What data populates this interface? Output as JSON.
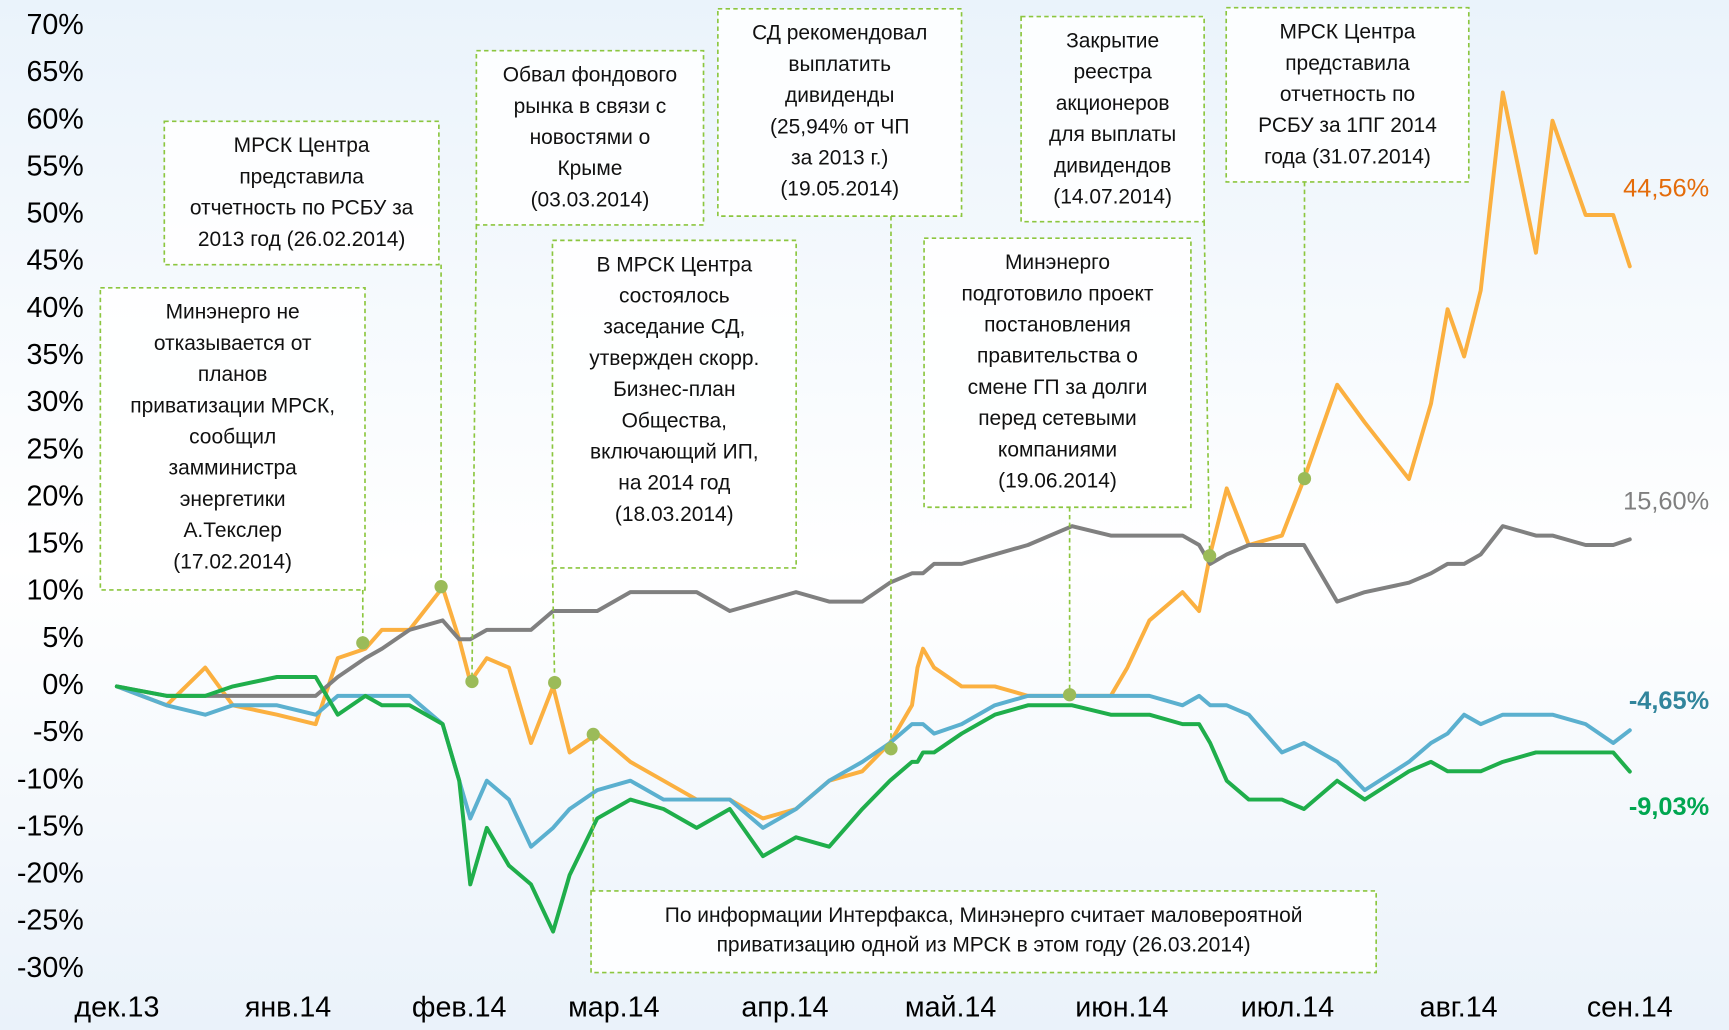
{
  "chart_data": {
    "type": "line",
    "x": [
      0,
      9,
      16,
      21,
      29,
      36,
      40,
      45,
      48,
      53,
      59,
      62,
      64,
      67,
      71,
      75,
      79,
      82,
      87,
      93,
      99,
      105,
      111,
      117,
      123,
      129,
      135,
      140,
      144,
      145,
      146,
      148,
      153,
      159,
      165,
      173,
      180,
      183,
      187,
      193,
      196,
      198,
      201,
      205,
      211,
      215,
      221,
      226,
      234,
      238,
      241,
      244,
      247,
      251,
      257,
      260,
      266,
      271,
      274
    ],
    "xlim": [
      0,
      274
    ],
    "xticks": [
      {
        "value": 0,
        "label": "дек.13"
      },
      {
        "value": 31,
        "label": "янв.14"
      },
      {
        "value": 62,
        "label": "фев.14"
      },
      {
        "value": 90,
        "label": "мар.14"
      },
      {
        "value": 121,
        "label": "апр.14"
      },
      {
        "value": 151,
        "label": "май.14"
      },
      {
        "value": 182,
        "label": "июн.14"
      },
      {
        "value": 212,
        "label": "июл.14"
      },
      {
        "value": 243,
        "label": "авг.14"
      },
      {
        "value": 274,
        "label": "сен.14"
      }
    ],
    "ylim": [
      -30,
      70
    ],
    "yticks": [
      {
        "value": 70,
        "label": "70%"
      },
      {
        "value": 65,
        "label": "65%"
      },
      {
        "value": 60,
        "label": "60%"
      },
      {
        "value": 55,
        "label": "55%"
      },
      {
        "value": 50,
        "label": "50%"
      },
      {
        "value": 45,
        "label": "45%"
      },
      {
        "value": 40,
        "label": "40%"
      },
      {
        "value": 35,
        "label": "35%"
      },
      {
        "value": 30,
        "label": "30%"
      },
      {
        "value": 25,
        "label": "25%"
      },
      {
        "value": 20,
        "label": "20%"
      },
      {
        "value": 15,
        "label": "15%"
      },
      {
        "value": 10,
        "label": "10%"
      },
      {
        "value": 5,
        "label": "5%"
      },
      {
        "value": 0,
        "label": "0%"
      },
      {
        "value": -5,
        "label": "-5%"
      },
      {
        "value": -10,
        "label": "-10%"
      },
      {
        "value": -15,
        "label": "-15%"
      },
      {
        "value": -20,
        "label": "-20%"
      },
      {
        "value": -25,
        "label": "-25%"
      },
      {
        "value": -30,
        "label": "-30%"
      }
    ],
    "grid": false,
    "series": [
      {
        "color": "#fbb040",
        "values": [
          0,
          -2,
          2,
          -2,
          -3,
          -4,
          3,
          4,
          6,
          6,
          10.5,
          5,
          0.5,
          3,
          2,
          -6,
          0,
          -7,
          -5,
          -8,
          -10,
          -12,
          -12,
          -14,
          -13,
          -10,
          -9,
          -6,
          -2,
          2,
          4,
          2,
          0,
          0,
          -1,
          -1,
          -1,
          2,
          7,
          10,
          8,
          14,
          21,
          15,
          16,
          22,
          32,
          28,
          22,
          30,
          40,
          35,
          42,
          63,
          46,
          60,
          50,
          50,
          44.56
        ],
        "value_labels": [
          null,
          null,
          null,
          null,
          null,
          null,
          null,
          null,
          null,
          null,
          null,
          null,
          null,
          null,
          null,
          null,
          null,
          null,
          null,
          null,
          null,
          null,
          null,
          null,
          null,
          null,
          null,
          null,
          null,
          null,
          null,
          null,
          null,
          null,
          null,
          null,
          null,
          null,
          null,
          null,
          null,
          null,
          null,
          null,
          null,
          null,
          null,
          null,
          null,
          null,
          null,
          null,
          null,
          null,
          null,
          null,
          null,
          null,
          "44,56%"
        ]
      },
      {
        "color": "#808080",
        "values": [
          0,
          -1,
          -1,
          -1,
          -1,
          -1,
          1,
          3,
          4,
          6,
          7,
          5,
          5,
          6,
          6,
          6,
          8,
          8,
          8,
          10,
          10,
          10,
          8,
          9,
          10,
          9,
          9,
          11,
          12,
          12,
          12,
          13,
          13,
          14,
          15,
          17,
          16,
          16,
          16,
          16,
          15,
          13,
          14,
          15,
          15,
          15,
          9,
          10,
          11,
          12,
          13,
          13,
          14,
          17,
          16,
          16,
          15,
          15,
          15.6
        ],
        "value_labels": [
          null,
          null,
          null,
          null,
          null,
          null,
          null,
          null,
          null,
          null,
          null,
          null,
          null,
          null,
          null,
          null,
          null,
          null,
          null,
          null,
          null,
          null,
          null,
          null,
          null,
          null,
          null,
          null,
          null,
          null,
          null,
          null,
          null,
          null,
          null,
          null,
          null,
          null,
          null,
          null,
          null,
          null,
          null,
          null,
          null,
          null,
          null,
          null,
          null,
          null,
          null,
          null,
          null,
          null,
          null,
          null,
          null,
          null,
          "15,60%"
        ]
      },
      {
        "color": "#5bb0cf",
        "values": [
          0,
          -2,
          -3,
          -2,
          -2,
          -3,
          -1,
          -1,
          -1,
          -1,
          -4,
          -10,
          -14,
          -10,
          -12,
          -17,
          -15,
          -13,
          -11,
          -10,
          -12,
          -12,
          -12,
          -15,
          -13,
          -10,
          -8,
          -6,
          -4,
          -4,
          -4,
          -5,
          -4,
          -2,
          -1,
          -1,
          -1,
          -1,
          -1,
          -2,
          -1,
          -2,
          -2,
          -3,
          -7,
          -6,
          -8,
          -11,
          -8,
          -6,
          -5,
          -3,
          -4,
          -3,
          -3,
          -3,
          -4,
          -6,
          -4.65
        ],
        "value_labels": [
          null,
          null,
          null,
          null,
          null,
          null,
          null,
          null,
          null,
          null,
          null,
          null,
          null,
          null,
          null,
          null,
          null,
          null,
          null,
          null,
          null,
          null,
          null,
          null,
          null,
          null,
          null,
          null,
          null,
          null,
          null,
          null,
          null,
          null,
          null,
          null,
          null,
          null,
          null,
          null,
          null,
          null,
          null,
          null,
          null,
          null,
          null,
          null,
          null,
          null,
          null,
          null,
          null,
          null,
          null,
          null,
          null,
          null,
          "-4,65%"
        ]
      },
      {
        "color": "#1fae4b",
        "values": [
          0,
          -1,
          -1,
          0,
          1,
          1,
          -3,
          -1,
          -2,
          -2,
          -4,
          -10,
          -21,
          -15,
          -19,
          -21,
          -26,
          -20,
          -14,
          -12,
          -13,
          -15,
          -13,
          -18,
          -16,
          -17,
          -13,
          -10,
          -8,
          -8,
          -7,
          -7,
          -5,
          -3,
          -2,
          -2,
          -3,
          -3,
          -3,
          -4,
          -4,
          -6,
          -10,
          -12,
          -12,
          -13,
          -10,
          -12,
          -9,
          -8,
          -9,
          -9,
          -9,
          -8,
          -7,
          -7,
          -7,
          -7,
          -9.03
        ],
        "value_labels": [
          null,
          null,
          null,
          null,
          null,
          null,
          null,
          null,
          null,
          null,
          null,
          null,
          null,
          null,
          null,
          null,
          null,
          null,
          null,
          null,
          null,
          null,
          null,
          null,
          null,
          null,
          null,
          null,
          null,
          null,
          null,
          null,
          null,
          null,
          null,
          null,
          null,
          null,
          null,
          null,
          null,
          null,
          null,
          null,
          null,
          null,
          null,
          null,
          null,
          null,
          null,
          null,
          null,
          null,
          null,
          null,
          null,
          null,
          "-9,03%"
        ]
      }
    ],
    "annotations": [
      [
        "Минэнерго не",
        "отказывается от",
        "планов",
        "приватизации МРСК,",
        "сообщил",
        "замминистра",
        "энергетики",
        "А.Текслер",
        "(17.02.2014)"
      ],
      [
        "МРСК Центра",
        "представила",
        "отчетность по РСБУ за",
        "2013 год (26.02.2014)"
      ],
      [
        "Обвал фондового",
        "рынка в связи с",
        "новостями о",
        "Крыме",
        "(03.03.2014)"
      ],
      [
        "В МРСК Центра",
        "состоялось",
        "заседание СД,",
        "утвержден скорр.",
        "Бизнес-план",
        "Общества,",
        "включающий ИП,",
        "на 2014 год",
        "(18.03.2014)"
      ],
      [
        "По информации Интерфакса, Минэнерго считает маловероятной",
        "приватизацию одной из МРСК в этом году (26.03.2014)"
      ],
      [
        "СД рекомендовал",
        "выплатить",
        "дивиденды",
        "(25,94% от ЧП",
        "за 2013 г.)",
        "(19.05.2014)"
      ],
      [
        "Минэнерго",
        "подготовило проект",
        "постановления",
        "правительства о",
        "смене ГП за долги",
        "перед сетевыми",
        "компаниями",
        "(19.06.2014)"
      ],
      [
        "Закрытие",
        "реестра",
        "акционеров",
        "для выплаты",
        "дивидендов",
        "(14.07.2014)"
      ],
      [
        "МРСК Центра",
        "представила",
        "отчетность по",
        "РСБУ за 1ПГ 2014",
        "года (31.07.2014)"
      ]
    ]
  }
}
